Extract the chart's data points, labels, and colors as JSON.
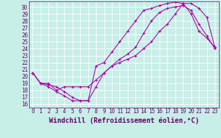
{
  "xlabel": "Windchill (Refroidissement éolien,°C)",
  "ylabel": "",
  "xlim": [
    -0.5,
    23.5
  ],
  "ylim": [
    15.5,
    30.8
  ],
  "xticks": [
    0,
    1,
    2,
    3,
    4,
    5,
    6,
    7,
    8,
    9,
    10,
    11,
    12,
    13,
    14,
    15,
    16,
    17,
    18,
    19,
    20,
    21,
    22,
    23
  ],
  "yticks": [
    16,
    17,
    18,
    19,
    20,
    21,
    22,
    23,
    24,
    25,
    26,
    27,
    28,
    29,
    30
  ],
  "bg_color": "#c8eee8",
  "grid_color": "#ffffff",
  "line_color": "#aa00aa",
  "curve1_x": [
    0,
    1,
    2,
    3,
    4,
    5,
    6,
    7,
    8,
    9,
    10,
    11,
    12,
    13,
    14,
    15,
    16,
    17,
    18,
    19,
    20,
    21,
    22,
    23
  ],
  "curve1_y": [
    20.5,
    19.0,
    18.5,
    17.8,
    17.2,
    16.5,
    16.5,
    16.5,
    18.5,
    20.5,
    21.5,
    22.5,
    23.2,
    24.2,
    26.2,
    28.0,
    29.2,
    29.8,
    30.0,
    30.2,
    29.5,
    27.5,
    25.8,
    24.0
  ],
  "curve2_x": [
    0,
    1,
    2,
    3,
    4,
    5,
    6,
    7,
    8,
    9,
    10,
    11,
    12,
    13,
    14,
    15,
    16,
    17,
    18,
    19,
    20,
    21,
    22,
    23
  ],
  "curve2_y": [
    20.5,
    19.0,
    18.8,
    18.5,
    17.8,
    17.0,
    16.5,
    16.5,
    21.5,
    22.0,
    23.5,
    25.0,
    26.5,
    28.0,
    29.5,
    29.8,
    30.2,
    30.5,
    30.7,
    30.5,
    29.0,
    26.5,
    25.5,
    24.2
  ],
  "curve3_x": [
    0,
    1,
    2,
    3,
    4,
    5,
    6,
    7,
    8,
    9,
    10,
    11,
    12,
    13,
    14,
    15,
    16,
    17,
    18,
    19,
    20,
    21,
    22,
    23
  ],
  "curve3_y": [
    20.5,
    19.0,
    19.0,
    18.0,
    18.5,
    18.5,
    18.5,
    18.5,
    19.5,
    20.5,
    21.5,
    22.0,
    22.5,
    23.0,
    24.0,
    25.0,
    26.5,
    27.5,
    29.0,
    30.5,
    30.5,
    29.8,
    28.5,
    24.2
  ],
  "font_color": "#660066",
  "tick_fontsize": 5.5,
  "label_fontsize": 7
}
